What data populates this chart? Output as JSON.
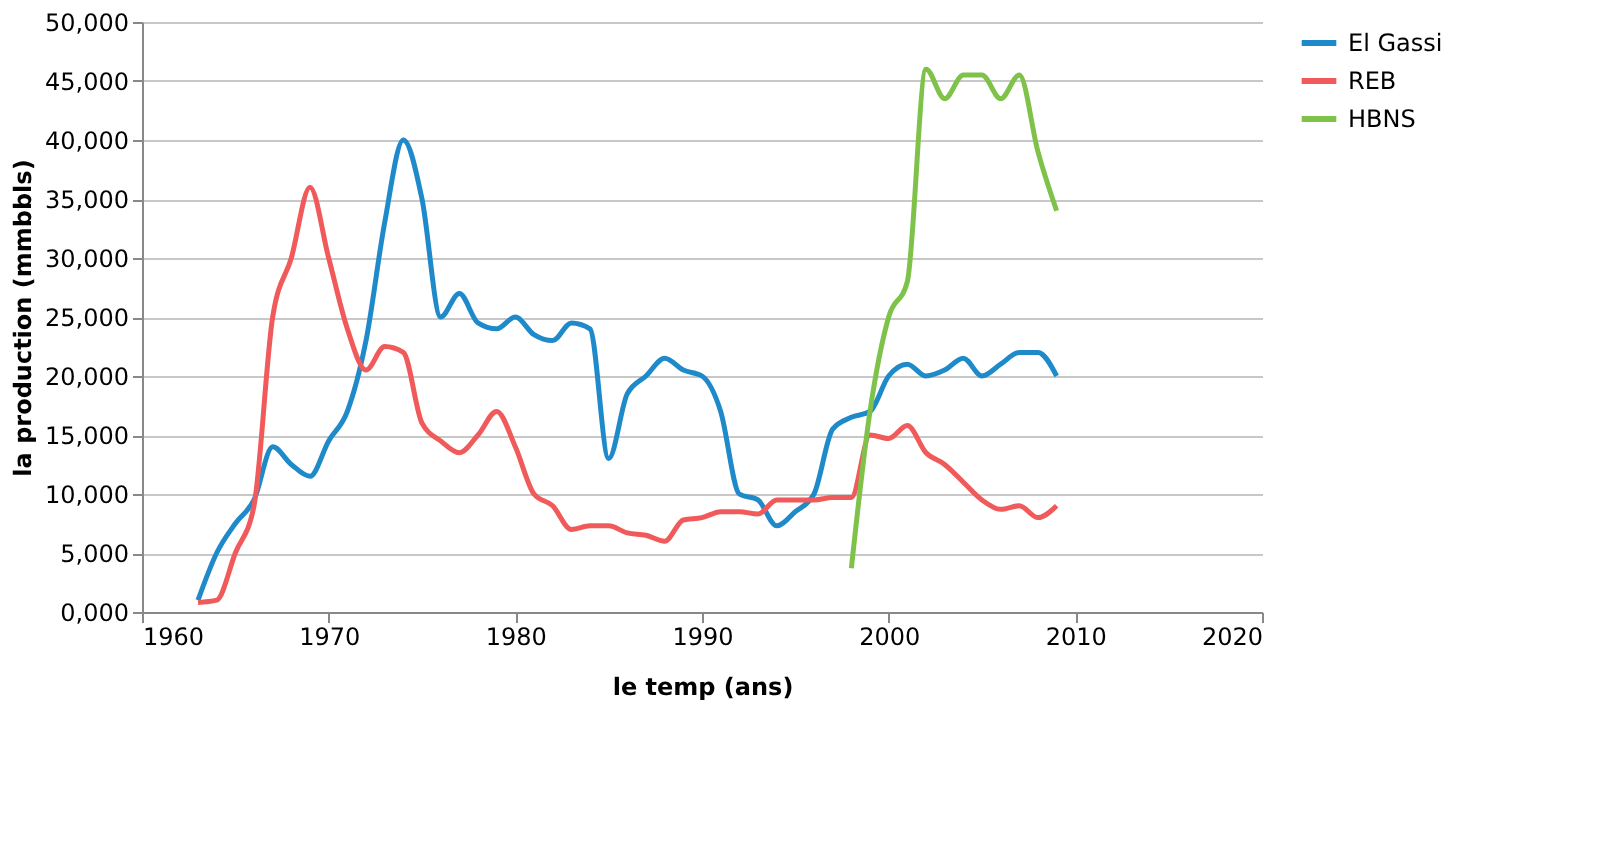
{
  "chart_data": {
    "type": "line",
    "xlabel": "le temp (ans)",
    "ylabel": "la production (mmbbls)",
    "xlim": [
      1960,
      2020
    ],
    "xticks": [
      1960,
      1970,
      1980,
      1990,
      2000,
      2010,
      2020
    ],
    "ylim": [
      0,
      50000
    ],
    "yticks": [
      {
        "value": 0,
        "label": "0,000"
      },
      {
        "value": 5000,
        "label": "5,000"
      },
      {
        "value": 10000,
        "label": "10,000"
      },
      {
        "value": 15000,
        "label": "15,000"
      },
      {
        "value": 20000,
        "label": "20,000"
      },
      {
        "value": 25000,
        "label": "25,000"
      },
      {
        "value": 30000,
        "label": "30,000"
      },
      {
        "value": 35000,
        "label": "35,000"
      },
      {
        "value": 40000,
        "label": "40,000"
      },
      {
        "value": 45000,
        "label": "45,000"
      },
      {
        "value": 50000,
        "label": "50,000"
      }
    ],
    "grid": "y",
    "legend": "right",
    "marker": "none",
    "line_style": "solid",
    "series": [
      {
        "name": "El Gassi",
        "color": "#1f8ac9",
        "x": [
          1963,
          1964,
          1965,
          1966,
          1967,
          1968,
          1969,
          1970,
          1971,
          1972,
          1973,
          1974,
          1975,
          1976,
          1977,
          1978,
          1979,
          1980,
          1981,
          1982,
          1983,
          1984,
          1985,
          1986,
          1987,
          1988,
          1989,
          1990,
          1991,
          1992,
          1993,
          1994,
          1995,
          1996,
          1997,
          1998,
          1999,
          2000,
          2001,
          2002,
          2003,
          2004,
          2005,
          2006,
          2007,
          2008,
          2009
        ],
        "values": [
          1000,
          5000,
          7500,
          9500,
          14000,
          12500,
          11500,
          14500,
          17000,
          23000,
          33000,
          40000,
          35000,
          25000,
          27000,
          24500,
          24000,
          25000,
          23500,
          23000,
          24500,
          24000,
          13000,
          18500,
          20000,
          21500,
          20500,
          20000,
          17000,
          10000,
          9500,
          7300,
          8500,
          10000,
          15500,
          16500,
          17000,
          20000,
          21000,
          20000,
          20500,
          21500,
          20000,
          21000,
          22000,
          22000,
          20000
        ]
      },
      {
        "name": "REB",
        "color": "#f05a5a",
        "x": [
          1963,
          1964,
          1965,
          1966,
          1967,
          1968,
          1969,
          1970,
          1971,
          1972,
          1973,
          1974,
          1975,
          1976,
          1977,
          1978,
          1979,
          1980,
          1981,
          1982,
          1983,
          1984,
          1985,
          1986,
          1987,
          1988,
          1989,
          1990,
          1991,
          1992,
          1993,
          1994,
          1995,
          1996,
          1997,
          1998,
          1999,
          2000,
          2001,
          2002,
          2003,
          2004,
          2005,
          2006,
          2007,
          2008,
          2009
        ],
        "values": [
          800,
          1000,
          5000,
          9000,
          25000,
          30000,
          36000,
          30000,
          24000,
          20500,
          22500,
          22000,
          16000,
          14500,
          13500,
          15000,
          17000,
          14000,
          10000,
          9000,
          7000,
          7300,
          7300,
          6700,
          6500,
          6000,
          7800,
          8000,
          8500,
          8500,
          8300,
          9500,
          9500,
          9500,
          9700,
          9700,
          15000,
          14700,
          15800,
          13500,
          12500,
          11000,
          9500,
          8700,
          9000,
          8000,
          9000
        ]
      },
      {
        "name": "HBNS",
        "color": "#7fc24a",
        "x": [
          1998,
          1999,
          2000,
          2001,
          2002,
          2003,
          2004,
          2005,
          2006,
          2007,
          2008,
          2009
        ],
        "values": [
          3700,
          17000,
          25000,
          28000,
          46000,
          43500,
          45500,
          45500,
          43500,
          45500,
          39000,
          34000
        ]
      }
    ]
  }
}
